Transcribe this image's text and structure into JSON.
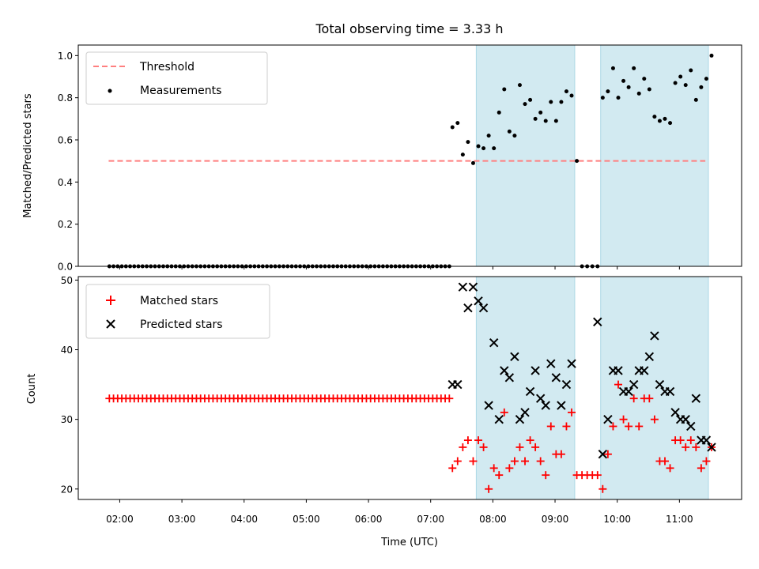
{
  "chart_data": {
    "title": "Total observing time = 3.33 h",
    "xlabel": "Time (UTC)",
    "x_ticks": [
      "02:00",
      "03:00",
      "04:00",
      "05:00",
      "06:00",
      "07:00",
      "08:00",
      "09:00",
      "10:00",
      "11:00"
    ],
    "colors": {
      "threshold": "#ff7f7f",
      "measurements": "#000000",
      "matched": "#ff0000",
      "predicted": "#000000",
      "shade": "#add8e6"
    },
    "shaded_intervals": [
      [
        "07:44",
        "09:19"
      ],
      [
        "09:44",
        "11:28"
      ]
    ],
    "panels": [
      {
        "type": "scatter",
        "ylabel": "Matched/Predicted stars",
        "ylim": [
          0,
          1.05
        ],
        "y_ticks": [
          "0.0",
          "0.2",
          "0.4",
          "0.6",
          "0.8",
          "1.0"
        ],
        "legend_position": "upper-left",
        "threshold": {
          "name": "Threshold",
          "value": 0.5,
          "x_range": [
            "02:00",
            "11:25"
          ]
        },
        "series": [
          {
            "name": "Measurements",
            "x": [
              "01:50",
              "01:54",
              "01:58",
              "02:02",
              "02:06",
              "02:10",
              "02:14",
              "02:18",
              "02:22",
              "02:26",
              "02:30",
              "02:34",
              "02:38",
              "02:42",
              "02:46",
              "02:50",
              "02:54",
              "02:58",
              "03:02",
              "03:06",
              "03:10",
              "03:14",
              "03:18",
              "03:22",
              "03:26",
              "03:30",
              "03:34",
              "03:38",
              "03:42",
              "03:46",
              "03:50",
              "03:54",
              "03:58",
              "04:02",
              "04:06",
              "04:10",
              "04:14",
              "04:18",
              "04:22",
              "04:26",
              "04:30",
              "04:34",
              "04:38",
              "04:42",
              "04:46",
              "04:50",
              "04:54",
              "04:58",
              "05:02",
              "05:06",
              "05:10",
              "05:14",
              "05:18",
              "05:22",
              "05:26",
              "05:30",
              "05:34",
              "05:38",
              "05:42",
              "05:46",
              "05:50",
              "05:54",
              "05:58",
              "06:02",
              "06:06",
              "06:10",
              "06:14",
              "06:18",
              "06:22",
              "06:26",
              "06:30",
              "06:34",
              "06:38",
              "06:42",
              "06:46",
              "06:50",
              "06:54",
              "06:58",
              "07:02",
              "07:06",
              "07:10",
              "07:14",
              "07:18",
              "07:21",
              "07:26",
              "07:31",
              "07:36",
              "07:41",
              "07:46",
              "07:51",
              "07:56",
              "08:01",
              "08:06",
              "08:11",
              "08:16",
              "08:21",
              "08:26",
              "08:31",
              "08:36",
              "08:41",
              "08:46",
              "08:51",
              "08:56",
              "09:01",
              "09:06",
              "09:11",
              "09:16",
              "09:21",
              "09:26",
              "09:31",
              "09:36",
              "09:41",
              "09:46",
              "09:51",
              "09:56",
              "10:01",
              "10:06",
              "10:11",
              "10:16",
              "10:21",
              "10:26",
              "10:31",
              "10:36",
              "10:41",
              "10:46",
              "10:51",
              "10:56",
              "11:01",
              "11:06",
              "11:11",
              "11:16",
              "11:21",
              "11:26",
              "11:31"
            ],
            "y": [
              0,
              0,
              0,
              0,
              0,
              0,
              0,
              0,
              0,
              0,
              0,
              0,
              0,
              0,
              0,
              0,
              0,
              0,
              0,
              0,
              0,
              0,
              0,
              0,
              0,
              0,
              0,
              0,
              0,
              0,
              0,
              0,
              0,
              0,
              0,
              0,
              0,
              0,
              0,
              0,
              0,
              0,
              0,
              0,
              0,
              0,
              0,
              0,
              0,
              0,
              0,
              0,
              0,
              0,
              0,
              0,
              0,
              0,
              0,
              0,
              0,
              0,
              0,
              0,
              0,
              0,
              0,
              0,
              0,
              0,
              0,
              0,
              0,
              0,
              0,
              0,
              0,
              0,
              0,
              0,
              0,
              0,
              0,
              0.66,
              0.68,
              0.53,
              0.59,
              0.49,
              0.57,
              0.56,
              0.62,
              0.56,
              0.73,
              0.84,
              0.64,
              0.62,
              0.86,
              0.77,
              0.79,
              0.7,
              0.73,
              0.69,
              0.78,
              0.69,
              0.78,
              0.83,
              0.81,
              0.5,
              0,
              0,
              0,
              0,
              0.8,
              0.83,
              0.94,
              0.8,
              0.88,
              0.85,
              0.94,
              0.82,
              0.89,
              0.84,
              0.71,
              0.69,
              0.7,
              0.68,
              0.87,
              0.9,
              0.86,
              0.93,
              0.79,
              0.85,
              0.89,
              1.0
            ]
          }
        ]
      },
      {
        "type": "scatter",
        "ylabel": "Count",
        "ylim": [
          18.5,
          50.5
        ],
        "y_ticks": [
          "20",
          "30",
          "40",
          "50"
        ],
        "legend_position": "upper-left",
        "series": [
          {
            "name": "Matched stars",
            "marker": "+",
            "x": [
              "01:50",
              "01:54",
              "01:58",
              "02:02",
              "02:06",
              "02:10",
              "02:14",
              "02:18",
              "02:22",
              "02:26",
              "02:30",
              "02:34",
              "02:38",
              "02:42",
              "02:46",
              "02:50",
              "02:54",
              "02:58",
              "03:02",
              "03:06",
              "03:10",
              "03:14",
              "03:18",
              "03:22",
              "03:26",
              "03:30",
              "03:34",
              "03:38",
              "03:42",
              "03:46",
              "03:50",
              "03:54",
              "03:58",
              "04:02",
              "04:06",
              "04:10",
              "04:14",
              "04:18",
              "04:22",
              "04:26",
              "04:30",
              "04:34",
              "04:38",
              "04:42",
              "04:46",
              "04:50",
              "04:54",
              "04:58",
              "05:02",
              "05:06",
              "05:10",
              "05:14",
              "05:18",
              "05:22",
              "05:26",
              "05:30",
              "05:34",
              "05:38",
              "05:42",
              "05:46",
              "05:50",
              "05:54",
              "05:58",
              "06:02",
              "06:06",
              "06:10",
              "06:14",
              "06:18",
              "06:22",
              "06:26",
              "06:30",
              "06:34",
              "06:38",
              "06:42",
              "06:46",
              "06:50",
              "06:54",
              "06:58",
              "07:02",
              "07:06",
              "07:10",
              "07:14",
              "07:18",
              "07:21",
              "07:26",
              "07:31",
              "07:36",
              "07:41",
              "07:46",
              "07:51",
              "07:56",
              "08:01",
              "08:06",
              "08:11",
              "08:16",
              "08:21",
              "08:26",
              "08:31",
              "08:36",
              "08:41",
              "08:46",
              "08:51",
              "08:56",
              "09:01",
              "09:06",
              "09:11",
              "09:16",
              "09:21",
              "09:26",
              "09:31",
              "09:36",
              "09:41",
              "09:46",
              "09:51",
              "09:56",
              "10:01",
              "10:06",
              "10:11",
              "10:16",
              "10:21",
              "10:26",
              "10:31",
              "10:36",
              "10:41",
              "10:46",
              "10:51",
              "10:56",
              "11:01",
              "11:06",
              "11:11",
              "11:16",
              "11:21",
              "11:26",
              "11:31"
            ],
            "y": [
              33,
              33,
              33,
              33,
              33,
              33,
              33,
              33,
              33,
              33,
              33,
              33,
              33,
              33,
              33,
              33,
              33,
              33,
              33,
              33,
              33,
              33,
              33,
              33,
              33,
              33,
              33,
              33,
              33,
              33,
              33,
              33,
              33,
              33,
              33,
              33,
              33,
              33,
              33,
              33,
              33,
              33,
              33,
              33,
              33,
              33,
              33,
              33,
              33,
              33,
              33,
              33,
              33,
              33,
              33,
              33,
              33,
              33,
              33,
              33,
              33,
              33,
              33,
              33,
              33,
              33,
              33,
              33,
              33,
              33,
              33,
              33,
              33,
              33,
              33,
              33,
              33,
              33,
              33,
              33,
              33,
              33,
              33,
              23,
              24,
              26,
              27,
              24,
              27,
              26,
              20,
              23,
              22,
              31,
              23,
              24,
              26,
              24,
              27,
              26,
              24,
              22,
              29,
              25,
              25,
              29,
              31,
              22,
              22,
              22,
              22,
              22,
              20,
              25,
              29,
              35,
              30,
              29,
              33,
              29,
              33,
              33,
              30,
              24,
              24,
              23,
              27,
              27,
              26,
              27,
              26,
              23,
              24,
              26
            ]
          },
          {
            "name": "Predicted stars",
            "marker": "x",
            "x": [
              "07:21",
              "07:26",
              "07:31",
              "07:36",
              "07:41",
              "07:46",
              "07:51",
              "07:56",
              "08:01",
              "08:06",
              "08:11",
              "08:16",
              "08:21",
              "08:26",
              "08:31",
              "08:36",
              "08:41",
              "08:46",
              "08:51",
              "08:56",
              "09:01",
              "09:06",
              "09:11",
              "09:16",
              "09:41",
              "09:46",
              "09:51",
              "09:56",
              "10:01",
              "10:06",
              "10:11",
              "10:16",
              "10:21",
              "10:26",
              "10:31",
              "10:36",
              "10:41",
              "10:46",
              "10:51",
              "10:56",
              "11:01",
              "11:06",
              "11:11",
              "11:16",
              "11:21",
              "11:26",
              "11:31"
            ],
            "y": [
              35,
              35,
              49,
              46,
              49,
              47,
              46,
              32,
              41,
              30,
              37,
              36,
              39,
              30,
              31,
              34,
              37,
              33,
              32,
              38,
              36,
              32,
              35,
              38,
              44,
              25,
              30,
              37,
              37,
              34,
              34,
              35,
              37,
              37,
              39,
              42,
              35,
              34,
              34,
              31,
              30,
              30,
              29,
              33,
              27,
              27,
              26
            ]
          }
        ]
      }
    ]
  }
}
